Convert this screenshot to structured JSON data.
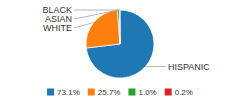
{
  "chart_data": {
    "type": "pie",
    "categories": [
      "HISPANIC",
      "WHITE",
      "ASIAN",
      "BLACK"
    ],
    "values": [
      73.1,
      25.7,
      1.0,
      0.2
    ],
    "value_labels": [
      "73.1%",
      "25.7%",
      "1.0%",
      "0.2%"
    ],
    "legend": "bottom"
  }
}
